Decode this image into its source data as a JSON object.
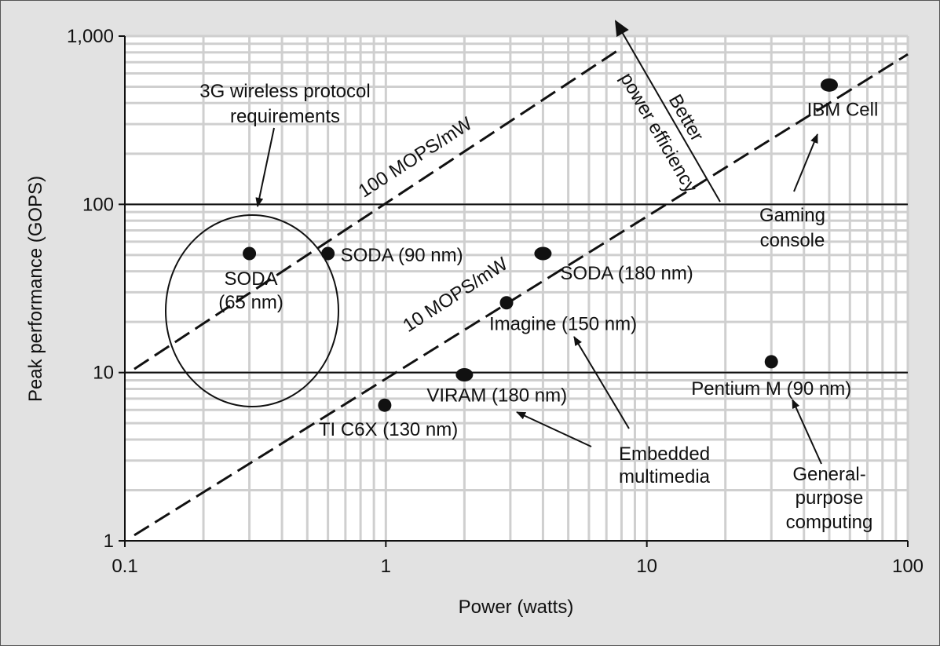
{
  "chart_data": {
    "type": "scatter",
    "xlabel": "Power (watts)",
    "ylabel": "Peak performance (GOPS)",
    "x_scale": "log",
    "y_scale": "log",
    "xlim": [
      0.1,
      100
    ],
    "ylim": [
      1,
      1000
    ],
    "x_ticks": [
      {
        "value": 0.1,
        "label": "0.1"
      },
      {
        "value": 1,
        "label": "1"
      },
      {
        "value": 10,
        "label": "10"
      },
      {
        "value": 100,
        "label": "100"
      }
    ],
    "y_ticks": [
      {
        "value": 1,
        "label": "1"
      },
      {
        "value": 10,
        "label": "10"
      },
      {
        "value": 100,
        "label": "100"
      },
      {
        "value": 1000,
        "label": "1,000"
      }
    ],
    "grid": true,
    "points": [
      {
        "name": "soda-65",
        "label": "SODA\n(65 nm)",
        "x": 0.3,
        "y": 51
      },
      {
        "name": "soda-90",
        "label": "SODA (90 nm)",
        "x": 0.6,
        "y": 51
      },
      {
        "name": "soda-180",
        "label": "SODA (180 nm)",
        "x": 4.0,
        "y": 51
      },
      {
        "name": "imagine",
        "label": "Imagine (150 nm)",
        "x": 2.9,
        "y": 26
      },
      {
        "name": "viram",
        "label": "VIRAM (180 nm)",
        "x": 2.0,
        "y": 9.7
      },
      {
        "name": "ti-c6x",
        "label": "TI C6X (130 nm)",
        "x": 0.99,
        "y": 6.4
      },
      {
        "name": "pentium-m",
        "label": "Pentium M (90 nm)",
        "x": 30,
        "y": 11.6
      },
      {
        "name": "ibm-cell",
        "label": "IBM Cell",
        "x": 50,
        "y": 512
      }
    ],
    "reference_lines": [
      {
        "name": "100-mops-line",
        "label": "100 MOPS/mW",
        "x": [
          0.1,
          8
        ],
        "y": [
          10.5,
          850
        ]
      },
      {
        "name": "10-mops-line",
        "label": "10 MOPS/mW",
        "x": [
          0.1,
          100
        ],
        "y": [
          1.08,
          780
        ]
      }
    ],
    "horizontal_lines": [
      10,
      100
    ],
    "annotations": [
      {
        "name": "3g-annotation",
        "text": "3G wireless protocol\nrequirements"
      },
      {
        "name": "better-efficiency-annotation",
        "text": "Better\npower efficiency"
      },
      {
        "name": "gaming-annotation",
        "text": "Gaming\nconsole"
      },
      {
        "name": "embedded-annotation",
        "text": "Embedded\nmultimedia"
      },
      {
        "name": "general-purpose-annotation",
        "text": "General-\npurpose\ncomputing"
      }
    ]
  }
}
